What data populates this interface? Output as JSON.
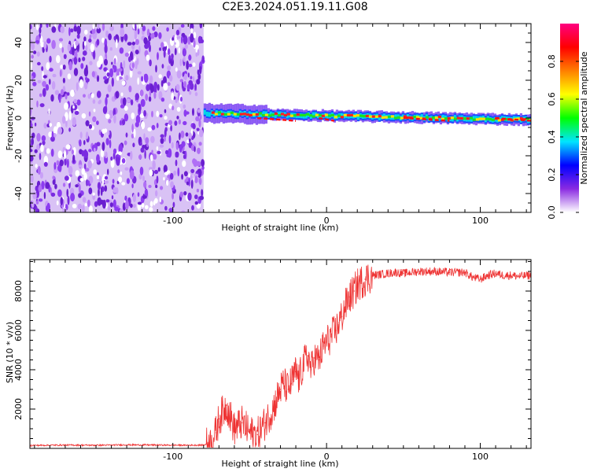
{
  "title": "C2E3.2024.051.19.11.G08",
  "chart_data": [
    {
      "type": "heatmap",
      "xlabel": "Height of straight line (km)",
      "ylabel": "Frequency (Hz)",
      "xlim": [
        -193,
        133
      ],
      "ylim": [
        -50,
        50
      ],
      "xticks": [
        -100,
        0,
        100
      ],
      "yticks": [
        -40,
        -20,
        0,
        20,
        40
      ],
      "colorbar": {
        "label": "Normalized spectral amplitude",
        "range": [
          0,
          1
        ],
        "ticks": [
          0.0,
          0.2,
          0.4,
          0.6,
          0.8
        ],
        "colormap": [
          "#ffffff",
          "#8a2be2",
          "#0000ff",
          "#00e5ff",
          "#00ff00",
          "#ffff00",
          "#ff7f00",
          "#ff0000",
          "#ff0080"
        ]
      },
      "features": {
        "noise_region_x": [
          -193,
          -80
        ],
        "signal_line_x": [
          -80,
          133
        ],
        "signal_frequency_hz": [
          3,
          1,
          0,
          -2
        ]
      },
      "grid": false
    },
    {
      "type": "line",
      "xlabel": "Height of straight line (km)",
      "ylabel": "SNR (10 * v/v)",
      "xlim": [
        -193,
        133
      ],
      "ylim": [
        0,
        9600
      ],
      "xticks": [
        -100,
        0,
        100
      ],
      "yticks": [
        2000,
        4000,
        6000,
        8000
      ],
      "color": "#ee3333",
      "grid": false,
      "series": [
        {
          "x": [
            -193,
            -170,
            -150,
            -130,
            -110,
            -90,
            -80,
            -75,
            -72,
            -70,
            -65,
            -60,
            -55,
            -50,
            -45,
            -40,
            -35,
            -30,
            -28,
            -25,
            -22,
            -20,
            -18,
            -15,
            -12,
            -10,
            -8,
            -5,
            -2,
            0,
            3,
            6,
            8,
            10,
            12,
            15,
            18,
            20,
            25,
            30,
            35,
            40,
            45,
            50,
            60,
            70,
            80,
            90,
            95,
            100,
            105,
            110,
            115,
            120,
            125,
            133
          ],
          "y": [
            150,
            170,
            160,
            180,
            170,
            160,
            170,
            300,
            800,
            1500,
            2200,
            1000,
            1300,
            800,
            700,
            1300,
            2000,
            3000,
            3300,
            3000,
            3500,
            3900,
            3500,
            4300,
            4700,
            4000,
            4600,
            4500,
            5200,
            5400,
            5700,
            6000,
            6400,
            6700,
            7200,
            7700,
            8000,
            8300,
            8600,
            8800,
            8850,
            8900,
            8950,
            8900,
            9000,
            9000,
            8950,
            8950,
            8700,
            8600,
            8800,
            8900,
            8800,
            8800,
            8750,
            8800
          ]
        }
      ]
    }
  ]
}
